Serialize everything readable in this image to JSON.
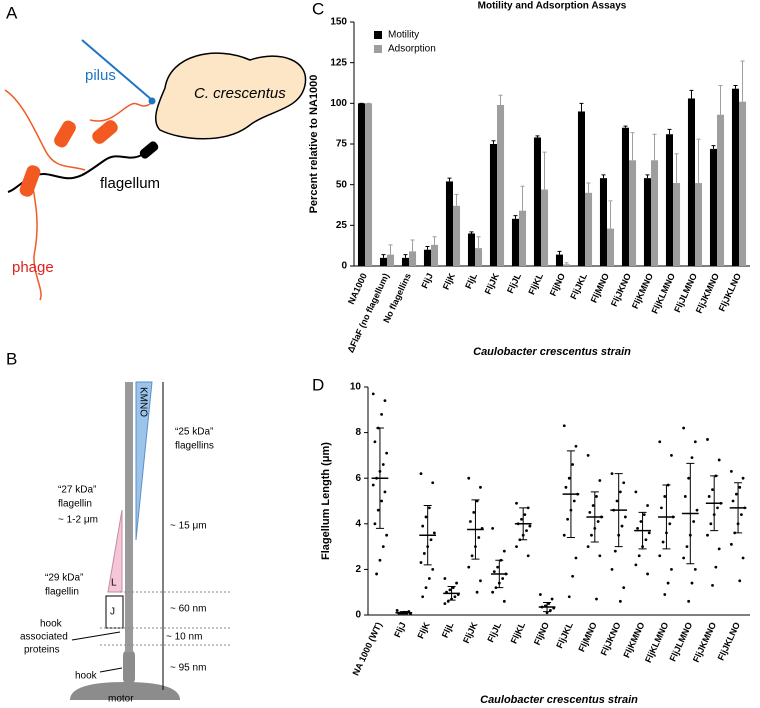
{
  "diagram_a": {
    "panel": "A",
    "pilus": "pilus",
    "organism": "C. crescentus",
    "flagellum": "flagellum",
    "phage": "phage"
  },
  "diagram_b": {
    "panel": "B",
    "kmno": "KMNO",
    "flagellins_25": [
      "“25 kDa”",
      "flagellins"
    ],
    "length_15": "~ 15 μm",
    "flagellin_27": [
      "“27 kDa”",
      "flagellin"
    ],
    "length_12": "~ 1-2 μm",
    "l": "L",
    "flagellin_29": [
      "“29 kDa”",
      "flagellin"
    ],
    "j": "J",
    "length_60": "~ 60 nm",
    "length_10": "~ 10 nm",
    "hap": [
      "hook",
      "associated",
      "proteins"
    ],
    "length_95": "~ 95 nm",
    "hook": "hook",
    "motor": "motor"
  },
  "chart_data": [
    {
      "type": "bar",
      "panel": "C",
      "title": "Motility and Adsorption Assays",
      "y_label": "Percent relative to NA1000",
      "x_label": "Caulobacter crescentus strain",
      "categories": [
        "NA1000",
        "ΔFlaF (no flagellum)",
        "No flagellins",
        "FljJ",
        "FljK",
        "FljL",
        "FljJK",
        "FljJL",
        "FljKL",
        "FljNO",
        "FljJKL",
        "FljMNO",
        "FljJKNO",
        "FljKMNO",
        "FljKLMNO",
        "FljJLMNO",
        "FljJKMNO",
        "FljJKLNO"
      ],
      "series": [
        {
          "name": "Motility",
          "color": "#000000",
          "values": [
            100,
            5,
            5,
            10,
            52,
            20,
            75,
            29,
            79,
            7,
            95,
            54,
            85,
            54,
            81,
            103,
            72,
            109
          ],
          "errors": [
            0,
            2,
            2,
            2,
            2,
            1,
            2,
            2,
            1,
            2,
            5,
            2,
            1,
            2,
            3,
            5,
            2,
            2
          ]
        },
        {
          "name": "Adsorption",
          "color": "#9e9e9e",
          "values": [
            100,
            7,
            9,
            13,
            37,
            11,
            99,
            34,
            47,
            1,
            45,
            23,
            65,
            65,
            51,
            51,
            93,
            101
          ],
          "errors": [
            0,
            6,
            7,
            5,
            7,
            7,
            6,
            15,
            23,
            1,
            6,
            17,
            17,
            16,
            18,
            27,
            18,
            25
          ]
        }
      ],
      "ylim": [
        0,
        150
      ],
      "yticks": [
        0,
        25,
        50,
        75,
        100,
        125,
        150
      ],
      "legend": "upper left"
    },
    {
      "type": "dot_plot",
      "panel": "D",
      "y_label": "Flagellum Length (μm)",
      "x_label": "Caulobacter crescentus strain",
      "color": "#000000",
      "categories": [
        "NA 1000 (WT)",
        "FljJ",
        "FljK",
        "FljL",
        "FljJK",
        "FljJL",
        "FljKL",
        "FljNO",
        "FljJKL",
        "FljMNO",
        "FljJKNO",
        "FljKMNO",
        "FljKLMNO",
        "FljJLMNO",
        "FljJKMNO",
        "FljJKLNO"
      ],
      "means": [
        6.0,
        0.1,
        3.5,
        0.95,
        3.75,
        1.8,
        4.0,
        0.35,
        5.3,
        4.3,
        4.6,
        3.7,
        4.3,
        4.45,
        4.9,
        4.7
      ],
      "sd": [
        2.2,
        0.05,
        1.3,
        0.3,
        1.3,
        0.6,
        0.7,
        0.2,
        1.9,
        1.1,
        1.6,
        0.8,
        1.4,
        2.2,
        1.2,
        1.1
      ],
      "points": [
        [
          9.7,
          9.4,
          8.8,
          8.2,
          7.6,
          7.1,
          6.6,
          6.3,
          6.0,
          5.7,
          5.4,
          5.0,
          4.6,
          4.0,
          3.5,
          3.0,
          2.4,
          1.8
        ],
        [
          0.2,
          0.15,
          0.12,
          0.1,
          0.08,
          0.05,
          0.1,
          0.12
        ],
        [
          6.2,
          5.8,
          4.7,
          4.3,
          3.9,
          3.6,
          3.3,
          3.0,
          2.7,
          2.3,
          2.0,
          1.6,
          1.2,
          0.8
        ],
        [
          1.6,
          1.4,
          1.2,
          1.1,
          1.0,
          0.9,
          0.8,
          0.7,
          0.6,
          0.5
        ],
        [
          6.0,
          5.6,
          5.0,
          4.5,
          4.1,
          3.8,
          3.4,
          3.0,
          2.6,
          2.1,
          1.5,
          1.0
        ],
        [
          3.8,
          2.8,
          2.4,
          2.1,
          1.9,
          1.8,
          1.6,
          1.4,
          1.2,
          1.0,
          0.6
        ],
        [
          4.9,
          4.7,
          4.4,
          4.2,
          4.0,
          3.9,
          3.7,
          3.5,
          3.3,
          3.0,
          2.6
        ],
        [
          0.9,
          0.7,
          0.5,
          0.4,
          0.35,
          0.3,
          0.2,
          0.1
        ],
        [
          8.3,
          7.4,
          6.6,
          6.0,
          5.6,
          5.3,
          5.0,
          4.6,
          4.2,
          3.5,
          2.5,
          1.7,
          0.8
        ],
        [
          7.0,
          5.9,
          5.2,
          4.8,
          4.5,
          4.3,
          4.1,
          3.8,
          3.5,
          3.0,
          2.6,
          0.7
        ],
        [
          6.2,
          5.8,
          5.4,
          5.0,
          4.6,
          4.3,
          3.9,
          3.5,
          2.8,
          2.0,
          1.2,
          0.6
        ],
        [
          5.4,
          4.8,
          4.4,
          4.1,
          3.8,
          3.6,
          3.3,
          3.0,
          2.6,
          2.2,
          1.8
        ],
        [
          7.6,
          7.0,
          5.7,
          5.2,
          4.7,
          4.3,
          4.0,
          3.6,
          3.2,
          2.6,
          2.0,
          1.4,
          0.9
        ],
        [
          8.2,
          7.6,
          6.9,
          6.0,
          5.2,
          4.6,
          4.1,
          3.5,
          3.0,
          2.5,
          2.0,
          1.4,
          0.6
        ],
        [
          7.7,
          6.8,
          6.1,
          5.5,
          5.2,
          4.9,
          4.7,
          4.4,
          4.0,
          3.5,
          2.9,
          2.1,
          1.3
        ],
        [
          6.3,
          6.0,
          5.6,
          5.3,
          5.0,
          4.7,
          4.4,
          4.0,
          3.6,
          3.1,
          2.5,
          1.5
        ]
      ],
      "ylim": [
        0,
        10
      ],
      "yticks": [
        0,
        2,
        4,
        6,
        8,
        10
      ]
    }
  ]
}
